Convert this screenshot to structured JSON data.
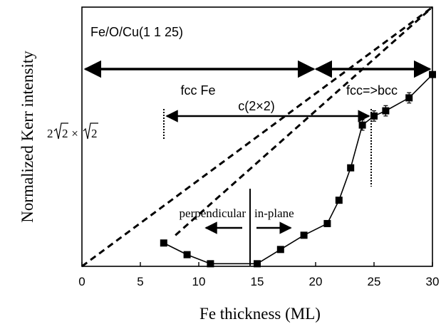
{
  "chart_data": {
    "type": "line",
    "title": "Fe/O/Cu(1 1 25)",
    "xlabel": "Fe thickness (ML)",
    "ylabel": "Normalized Kerr intensity",
    "xlim": [
      0,
      30
    ],
    "ylim": [
      0,
      1
    ],
    "xticks": [
      "0",
      "5",
      "10",
      "15",
      "20",
      "25",
      "30"
    ],
    "grid": false,
    "series": [
      {
        "values_x": [
          7,
          9,
          11,
          15,
          17,
          19,
          21,
          22,
          23,
          24,
          25,
          26,
          28,
          30
        ],
        "values_y": [
          0.09,
          0.045,
          0.01,
          0.01,
          0.065,
          0.12,
          0.165,
          0.255,
          0.38,
          0.545,
          0.58,
          0.6,
          0.65,
          0.74
        ],
        "errors": [
          0,
          0,
          0,
          0,
          0,
          0,
          0,
          0,
          0,
          0.02,
          0.02,
          0.02,
          0.02,
          0
        ]
      }
    ],
    "dashed_lines": [
      {
        "x": [
          0,
          30
        ],
        "y": [
          0,
          1.0
        ]
      },
      {
        "x": [
          8,
          30
        ],
        "y": [
          0.12,
          1.0
        ]
      }
    ],
    "annotations": {
      "fcc_fe": "fcc Fe",
      "fcc_bcc": "fcc=>bcc",
      "c2x2": "c(2×2)",
      "perpendicular": "perpendicular",
      "in_plane": "in-plane",
      "reconstruction_prefix": "2",
      "reconstruction_suffix": " × ",
      "sqrt_arg": "2"
    }
  }
}
